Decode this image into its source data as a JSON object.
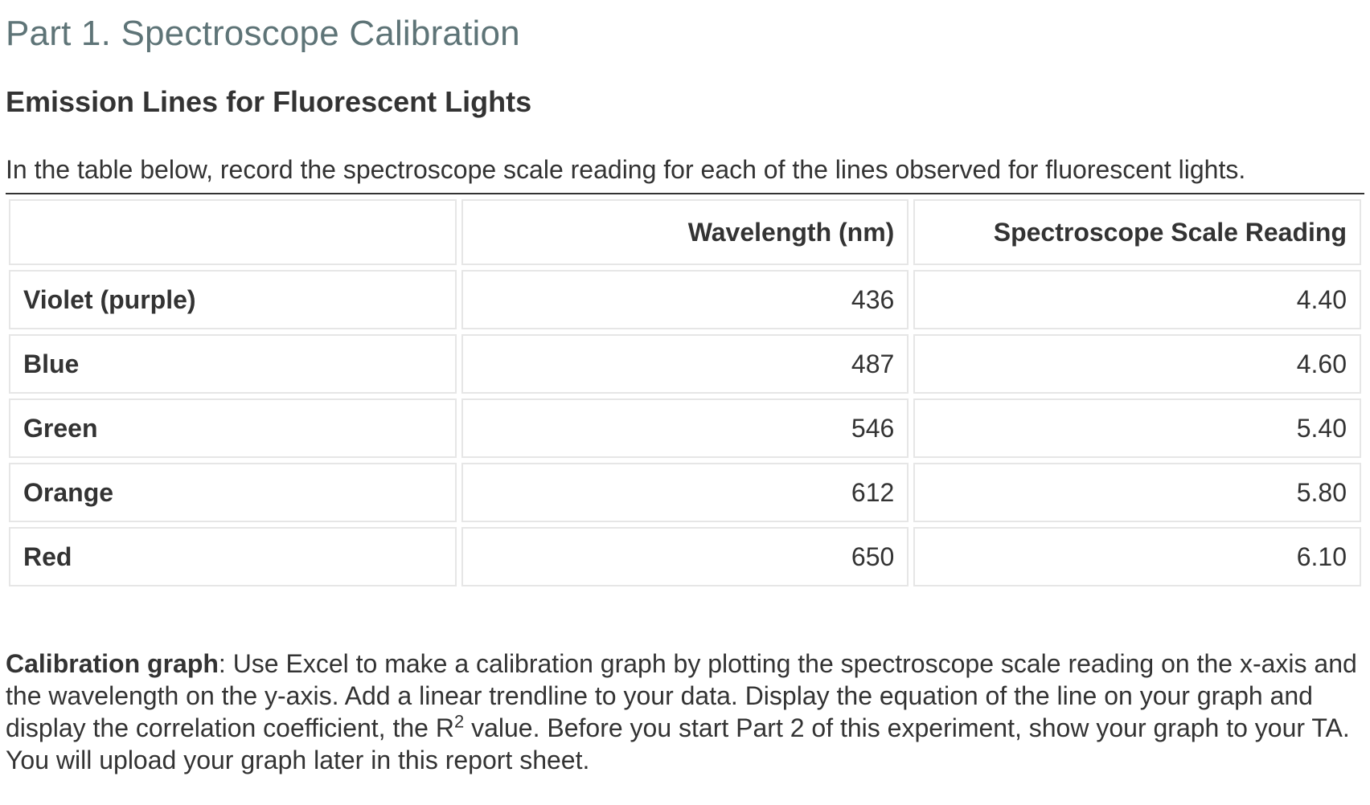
{
  "part_title": "Part 1. Spectroscope Calibration",
  "section_heading": "Emission Lines for Fluorescent Lights",
  "intro_text": "In the table below, record the spectroscope scale reading for each of the lines observed for fluorescent lights.",
  "table": {
    "headers": [
      "",
      "Wavelength (nm)",
      "Spectroscope Scale Reading"
    ],
    "rows": [
      {
        "label": "Violet (purple)",
        "wavelength": "436",
        "reading": "4.40"
      },
      {
        "label": "Blue",
        "wavelength": "487",
        "reading": "4.60"
      },
      {
        "label": "Green",
        "wavelength": "546",
        "reading": "5.40"
      },
      {
        "label": "Orange",
        "wavelength": "612",
        "reading": "5.80"
      },
      {
        "label": "Red",
        "wavelength": "650",
        "reading": "6.10"
      }
    ]
  },
  "calibration": {
    "label": "Calibration graph",
    "text_before_sup": ": Use Excel to make a calibration graph by plotting the spectroscope scale reading on the x-axis and the wavelength on the y-axis. Add a linear trendline to your data. Display the equation of the line on your graph and display the correlation coefficient, the R",
    "sup": "2",
    "text_after_sup": " value. Before you start Part 2 of this experiment, show your graph to your TA. You will upload your graph later in this report sheet."
  }
}
